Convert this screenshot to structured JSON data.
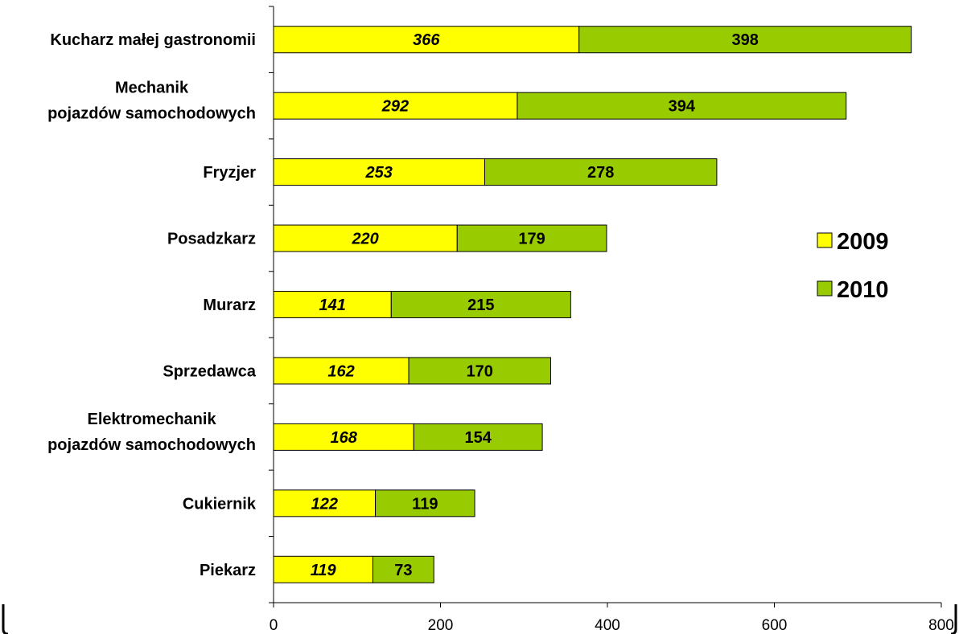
{
  "chart_data": {
    "type": "bar",
    "orientation": "horizontal",
    "stacked": true,
    "categories": [
      [
        "Kucharz małej gastronomii"
      ],
      [
        "Mechanik",
        "pojazdów samochodowych"
      ],
      [
        "Fryzjer"
      ],
      [
        "Posadzkarz"
      ],
      [
        "Murarz"
      ],
      [
        "Sprzedawca"
      ],
      [
        "Elektromechanik",
        "pojazdów samochodowych"
      ],
      [
        "Cukiernik"
      ],
      [
        "Piekarz"
      ]
    ],
    "series": [
      {
        "name": "2009",
        "color": "#ffff00",
        "label_style": "bold-italic",
        "values": [
          366,
          292,
          253,
          220,
          141,
          162,
          168,
          122,
          119
        ]
      },
      {
        "name": "2010",
        "color": "#99cc00",
        "label_style": "bold",
        "values": [
          398,
          394,
          278,
          179,
          215,
          170,
          154,
          119,
          73
        ]
      }
    ],
    "xlim": [
      0,
      800
    ],
    "xticks": [
      "0",
      "200",
      "400",
      "600",
      "800"
    ],
    "grid": false,
    "legend": "right",
    "title": "",
    "xlabel": "",
    "ylabel": ""
  }
}
